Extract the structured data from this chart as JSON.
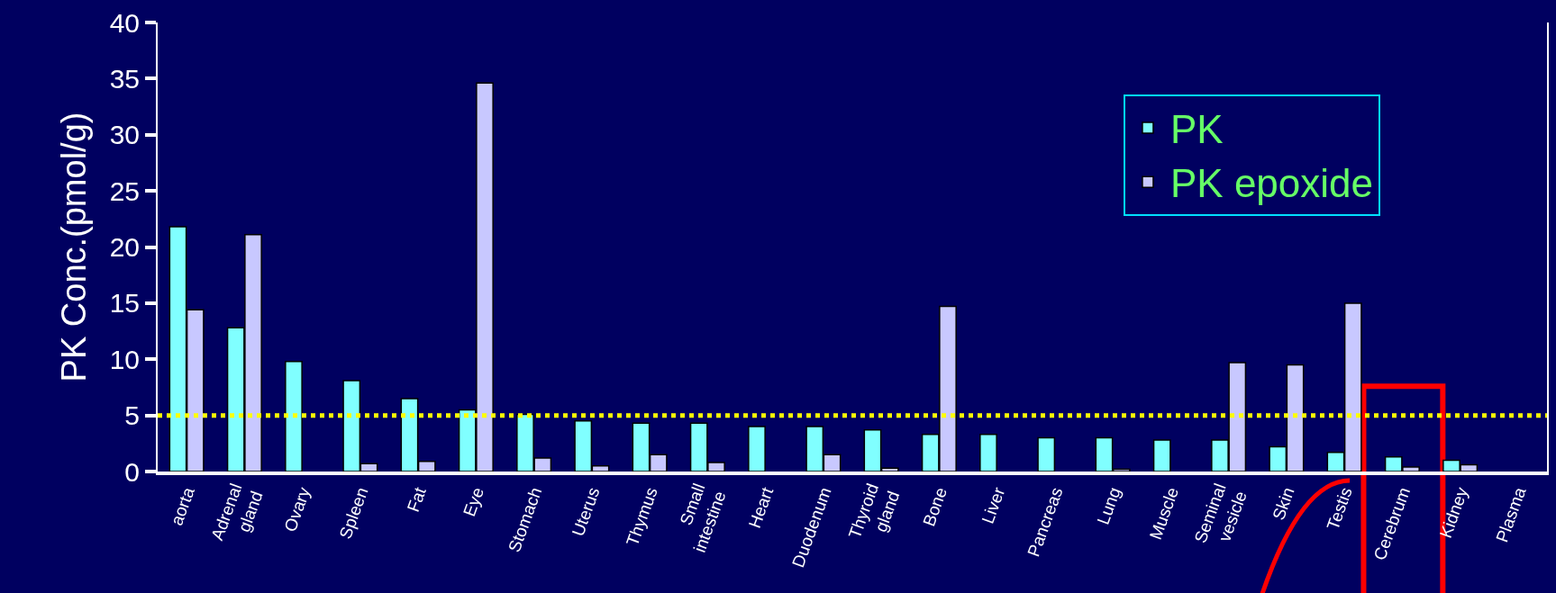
{
  "chart_data": {
    "type": "bar",
    "ylabel": "PK Conc.(pmol/g)",
    "categories": [
      "aorta",
      "Adrenal gland",
      "Ovary",
      "Spleen",
      "Fat",
      "Eye",
      "Stomach",
      "Uterus",
      "Thymus",
      "Small intestine",
      "Heart",
      "Duodenum",
      "Thyroid gland",
      "Bone",
      "Liver",
      "Pancreas",
      "Lung",
      "Muscle",
      "Seminal vesicle",
      "Skin",
      "Testis",
      "Cerebrum",
      "Kidney",
      "Plasma"
    ],
    "series": [
      {
        "name": "PK",
        "color": "#80ffff",
        "values": [
          21.8,
          12.8,
          9.8,
          8.1,
          6.5,
          5.5,
          5.1,
          4.5,
          4.3,
          4.3,
          4.0,
          4.0,
          3.7,
          3.3,
          3.3,
          3.0,
          3.0,
          2.8,
          2.8,
          2.2,
          1.7,
          1.3,
          1.0,
          null
        ]
      },
      {
        "name": "PK epoxide",
        "color": "#c8c8ff",
        "values": [
          14.4,
          21.1,
          null,
          0.7,
          0.9,
          34.6,
          1.2,
          0.5,
          1.5,
          0.8,
          null,
          1.5,
          0.3,
          14.7,
          null,
          null,
          0.2,
          null,
          9.7,
          9.5,
          15.0,
          0.4,
          0.6,
          null
        ]
      }
    ],
    "ylim": [
      0,
      40
    ],
    "yticks": [
      0,
      5,
      10,
      15,
      20,
      25,
      30,
      35,
      40
    ],
    "ref_lines": [
      {
        "axis": "y",
        "value": 5,
        "color": "#ffff00",
        "line_style": "dotted"
      }
    ],
    "legend": "top right",
    "grid": false
  }
}
